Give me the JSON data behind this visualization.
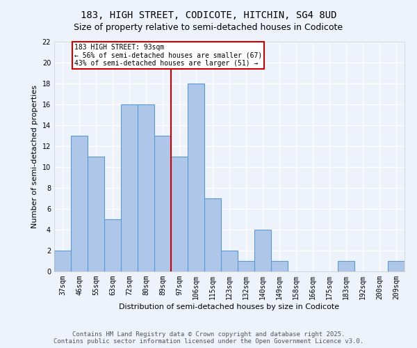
{
  "title": "183, HIGH STREET, CODICOTE, HITCHIN, SG4 8UD",
  "subtitle": "Size of property relative to semi-detached houses in Codicote",
  "xlabel": "Distribution of semi-detached houses by size in Codicote",
  "ylabel": "Number of semi-detached properties",
  "categories": [
    "37sqm",
    "46sqm",
    "55sqm",
    "63sqm",
    "72sqm",
    "80sqm",
    "89sqm",
    "97sqm",
    "106sqm",
    "115sqm",
    "123sqm",
    "132sqm",
    "140sqm",
    "149sqm",
    "158sqm",
    "166sqm",
    "175sqm",
    "183sqm",
    "192sqm",
    "200sqm",
    "209sqm"
  ],
  "values": [
    2,
    13,
    11,
    5,
    16,
    16,
    13,
    11,
    18,
    7,
    2,
    1,
    4,
    1,
    0,
    0,
    0,
    1,
    0,
    0,
    1
  ],
  "bar_color": "#aec6e8",
  "bar_edge_color": "#5b9bd5",
  "vline_index": 6.5,
  "annotation_text": "183 HIGH STREET: 93sqm\n← 56% of semi-detached houses are smaller (67)\n43% of semi-detached houses are larger (51) →",
  "annotation_box_color": "#ffffff",
  "annotation_box_edge": "#cc0000",
  "vline_color": "#cc0000",
  "ylim": [
    0,
    22
  ],
  "yticks": [
    0,
    2,
    4,
    6,
    8,
    10,
    12,
    14,
    16,
    18,
    20,
    22
  ],
  "background_color": "#eef2fa",
  "grid_color": "#ffffff",
  "footer": "Contains HM Land Registry data © Crown copyright and database right 2025.\nContains public sector information licensed under the Open Government Licence v3.0.",
  "title_fontsize": 10,
  "subtitle_fontsize": 9,
  "axis_label_fontsize": 8,
  "tick_fontsize": 7,
  "footer_fontsize": 6.5,
  "annot_fontsize": 7
}
